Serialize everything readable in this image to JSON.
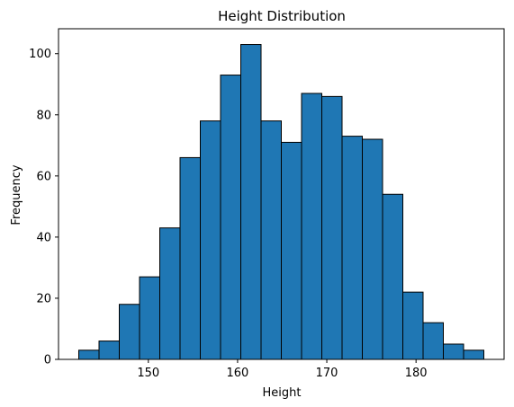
{
  "chart_data": {
    "type": "bar",
    "title": "Height Distribution",
    "xlabel": "Height",
    "ylabel": "Frequency",
    "bin_edges": [
      142.2,
      144.47,
      146.74,
      149.01,
      151.28,
      153.55,
      155.82,
      158.09,
      160.36,
      162.63,
      164.9,
      167.17,
      169.44,
      171.71,
      173.98,
      176.25,
      178.52,
      180.79,
      183.06,
      185.33,
      187.6
    ],
    "values": [
      3,
      6,
      18,
      27,
      43,
      66,
      78,
      93,
      103,
      78,
      71,
      87,
      86,
      73,
      72,
      54,
      22,
      12,
      5,
      3
    ],
    "xlim": [
      139.93,
      189.87
    ],
    "ylim": [
      0,
      108.15
    ],
    "xticks": [
      150,
      160,
      170,
      180
    ],
    "yticks": [
      0,
      20,
      40,
      60,
      80,
      100
    ],
    "bar_color": "#1f77b4",
    "edge_color": "#000000",
    "grid": false
  }
}
